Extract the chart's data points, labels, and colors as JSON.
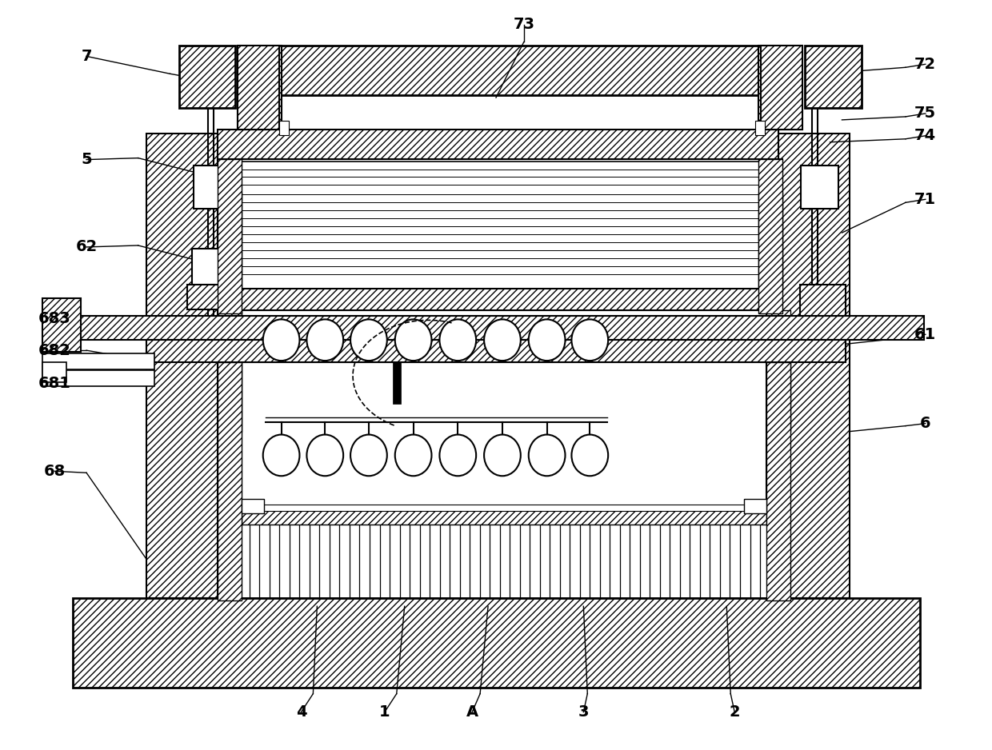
{
  "bg_color": "#ffffff",
  "figsize": [
    12.4,
    9.38
  ],
  "dpi": 100,
  "annotations": [
    [
      "7",
      105,
      68,
      [
        [
          210,
          90
        ],
        [
          265,
          100
        ]
      ]
    ],
    [
      "5",
      105,
      198,
      [
        [
          170,
          196
        ],
        [
          265,
          220
        ]
      ]
    ],
    [
      "62",
      105,
      308,
      [
        [
          170,
          306
        ],
        [
          265,
          330
        ]
      ]
    ],
    [
      "683",
      65,
      398,
      [
        [
          105,
          400
        ],
        [
          180,
          400
        ]
      ]
    ],
    [
      "682",
      65,
      438,
      [
        [
          105,
          438
        ],
        [
          175,
          450
        ]
      ]
    ],
    [
      "681",
      65,
      480,
      [
        [
          105,
          478
        ],
        [
          175,
          478
        ]
      ]
    ],
    [
      "68",
      65,
      590,
      [
        [
          105,
          592
        ],
        [
          180,
          700
        ]
      ]
    ],
    [
      "73",
      655,
      28,
      [
        [
          655,
          50
        ],
        [
          620,
          120
        ]
      ]
    ],
    [
      "72",
      1160,
      78,
      [
        [
          1135,
          82
        ],
        [
          1055,
          88
        ]
      ]
    ],
    [
      "75",
      1160,
      140,
      [
        [
          1135,
          144
        ],
        [
          1055,
          148
        ]
      ]
    ],
    [
      "74",
      1160,
      168,
      [
        [
          1135,
          172
        ],
        [
          1040,
          176
        ]
      ]
    ],
    [
      "71",
      1160,
      248,
      [
        [
          1135,
          252
        ],
        [
          1055,
          290
        ]
      ]
    ],
    [
      "61",
      1160,
      418,
      [
        [
          1135,
          422
        ],
        [
          1060,
          430
        ]
      ]
    ],
    [
      "6",
      1160,
      530,
      [
        [
          1135,
          533
        ],
        [
          1065,
          540
        ]
      ]
    ],
    [
      "4",
      375,
      893,
      [
        [
          390,
          870
        ],
        [
          395,
          760
        ]
      ]
    ],
    [
      "1",
      480,
      893,
      [
        [
          495,
          870
        ],
        [
          505,
          760
        ]
      ]
    ],
    [
      "A",
      590,
      893,
      [
        [
          600,
          870
        ],
        [
          610,
          760
        ]
      ]
    ],
    [
      "3",
      730,
      893,
      [
        [
          735,
          870
        ],
        [
          730,
          760
        ]
      ]
    ],
    [
      "2",
      920,
      893,
      [
        [
          915,
          870
        ],
        [
          910,
          760
        ]
      ]
    ]
  ]
}
